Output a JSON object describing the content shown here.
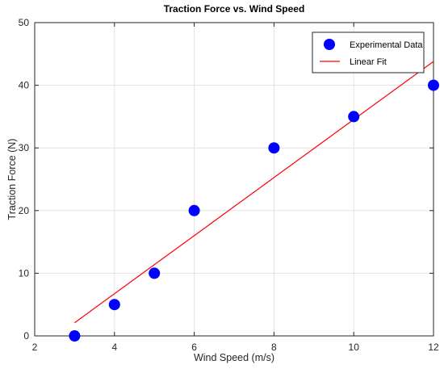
{
  "chart_data": {
    "type": "scatter",
    "title": "Traction Force vs. Wind Speed",
    "xlabel": "Wind Speed (m/s)",
    "ylabel": "Traction Force (N)",
    "xlim": [
      2,
      12
    ],
    "ylim": [
      0,
      50
    ],
    "xticks": [
      "2",
      "4",
      "6",
      "8",
      "10",
      "12"
    ],
    "yticks": [
      "0",
      "10",
      "20",
      "30",
      "40",
      "50"
    ],
    "grid": true,
    "legend_position": "top-right",
    "series": [
      {
        "name": "Experimental Data",
        "kind": "scatter",
        "color": "#0000ff",
        "x": [
          3,
          4,
          5,
          6,
          8,
          10,
          12
        ],
        "y": [
          0,
          5,
          10,
          20,
          30,
          35,
          40
        ]
      },
      {
        "name": "Linear Fit",
        "kind": "line",
        "color": "#ff0000",
        "x": [
          3,
          12
        ],
        "y": [
          2.1,
          43.8
        ]
      }
    ]
  }
}
